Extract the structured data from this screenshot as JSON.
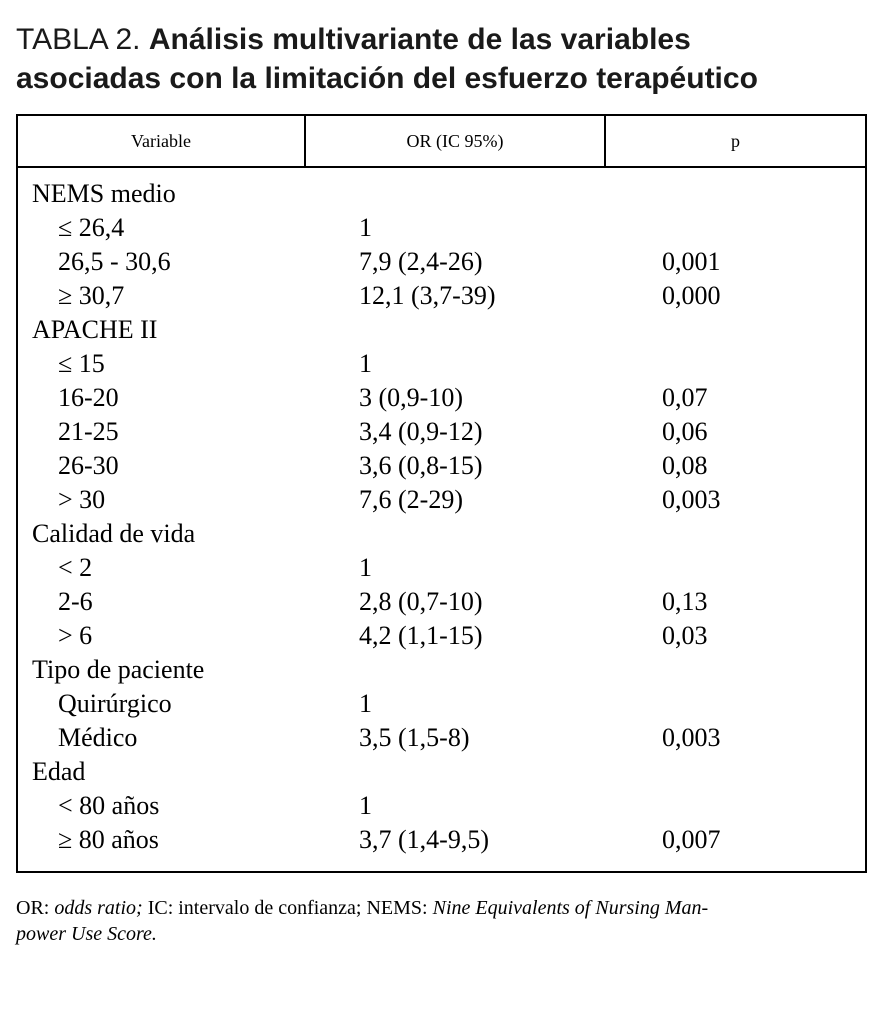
{
  "title": {
    "prefix": "TABLA 2.",
    "rest": "Análisis multivariante de las variables asociadas con la limitación del esfuerzo terapéutico"
  },
  "table": {
    "columns": [
      "Variable",
      "OR (IC 95%)",
      "p"
    ],
    "rows": [
      {
        "label": "NEMS medio",
        "or": "",
        "p": "",
        "indent": false
      },
      {
        "label": "≤ 26,4",
        "or": "1",
        "p": "",
        "indent": true
      },
      {
        "label": "26,5 - 30,6",
        "or": "7,9 (2,4-26)",
        "p": "0,001",
        "indent": true
      },
      {
        "label": "≥ 30,7",
        "or": "12,1 (3,7-39)",
        "p": "0,000",
        "indent": true
      },
      {
        "label": "APACHE II",
        "or": "",
        "p": "",
        "indent": false
      },
      {
        "label": "≤ 15",
        "or": "1",
        "p": "",
        "indent": true
      },
      {
        "label": "16-20",
        "or": "3 (0,9-10)",
        "p": "0,07",
        "indent": true
      },
      {
        "label": "21-25",
        "or": "3,4 (0,9-12)",
        "p": "0,06",
        "indent": true
      },
      {
        "label": "26-30",
        "or": "3,6 (0,8-15)",
        "p": "0,08",
        "indent": true
      },
      {
        "label": "> 30",
        "or": "7,6 (2-29)",
        "p": "0,003",
        "indent": true
      },
      {
        "label": "Calidad de vida",
        "or": "",
        "p": "",
        "indent": false
      },
      {
        "label": "< 2",
        "or": "1",
        "p": "",
        "indent": true
      },
      {
        "label": "2-6",
        "or": "2,8 (0,7-10)",
        "p": "0,13",
        "indent": true
      },
      {
        "label": "> 6",
        "or": "4,2 (1,1-15)",
        "p": "0,03",
        "indent": true
      },
      {
        "label": "Tipo de paciente",
        "or": "",
        "p": "",
        "indent": false
      },
      {
        "label": "Quirúrgico",
        "or": "1",
        "p": "",
        "indent": true
      },
      {
        "label": "Médico",
        "or": "3,5 (1,5-8)",
        "p": "0,003",
        "indent": true
      },
      {
        "label": "Edad",
        "or": "",
        "p": "",
        "indent": false
      },
      {
        "label": "< 80 años",
        "or": "1",
        "p": "",
        "indent": true
      },
      {
        "label": "≥ 80 años",
        "or": "3,7 (1,4-9,5)",
        "p": "0,007",
        "indent": true
      }
    ]
  },
  "footnote": {
    "segments": [
      {
        "text": "OR: ",
        "italic": false
      },
      {
        "text": "odds ratio;",
        "italic": true
      },
      {
        "text": " IC: intervalo de confianza; NEMS: ",
        "italic": false
      },
      {
        "text": "Nine Equivalents of Nursing Man-\npower Use Score.",
        "italic": true
      }
    ]
  }
}
